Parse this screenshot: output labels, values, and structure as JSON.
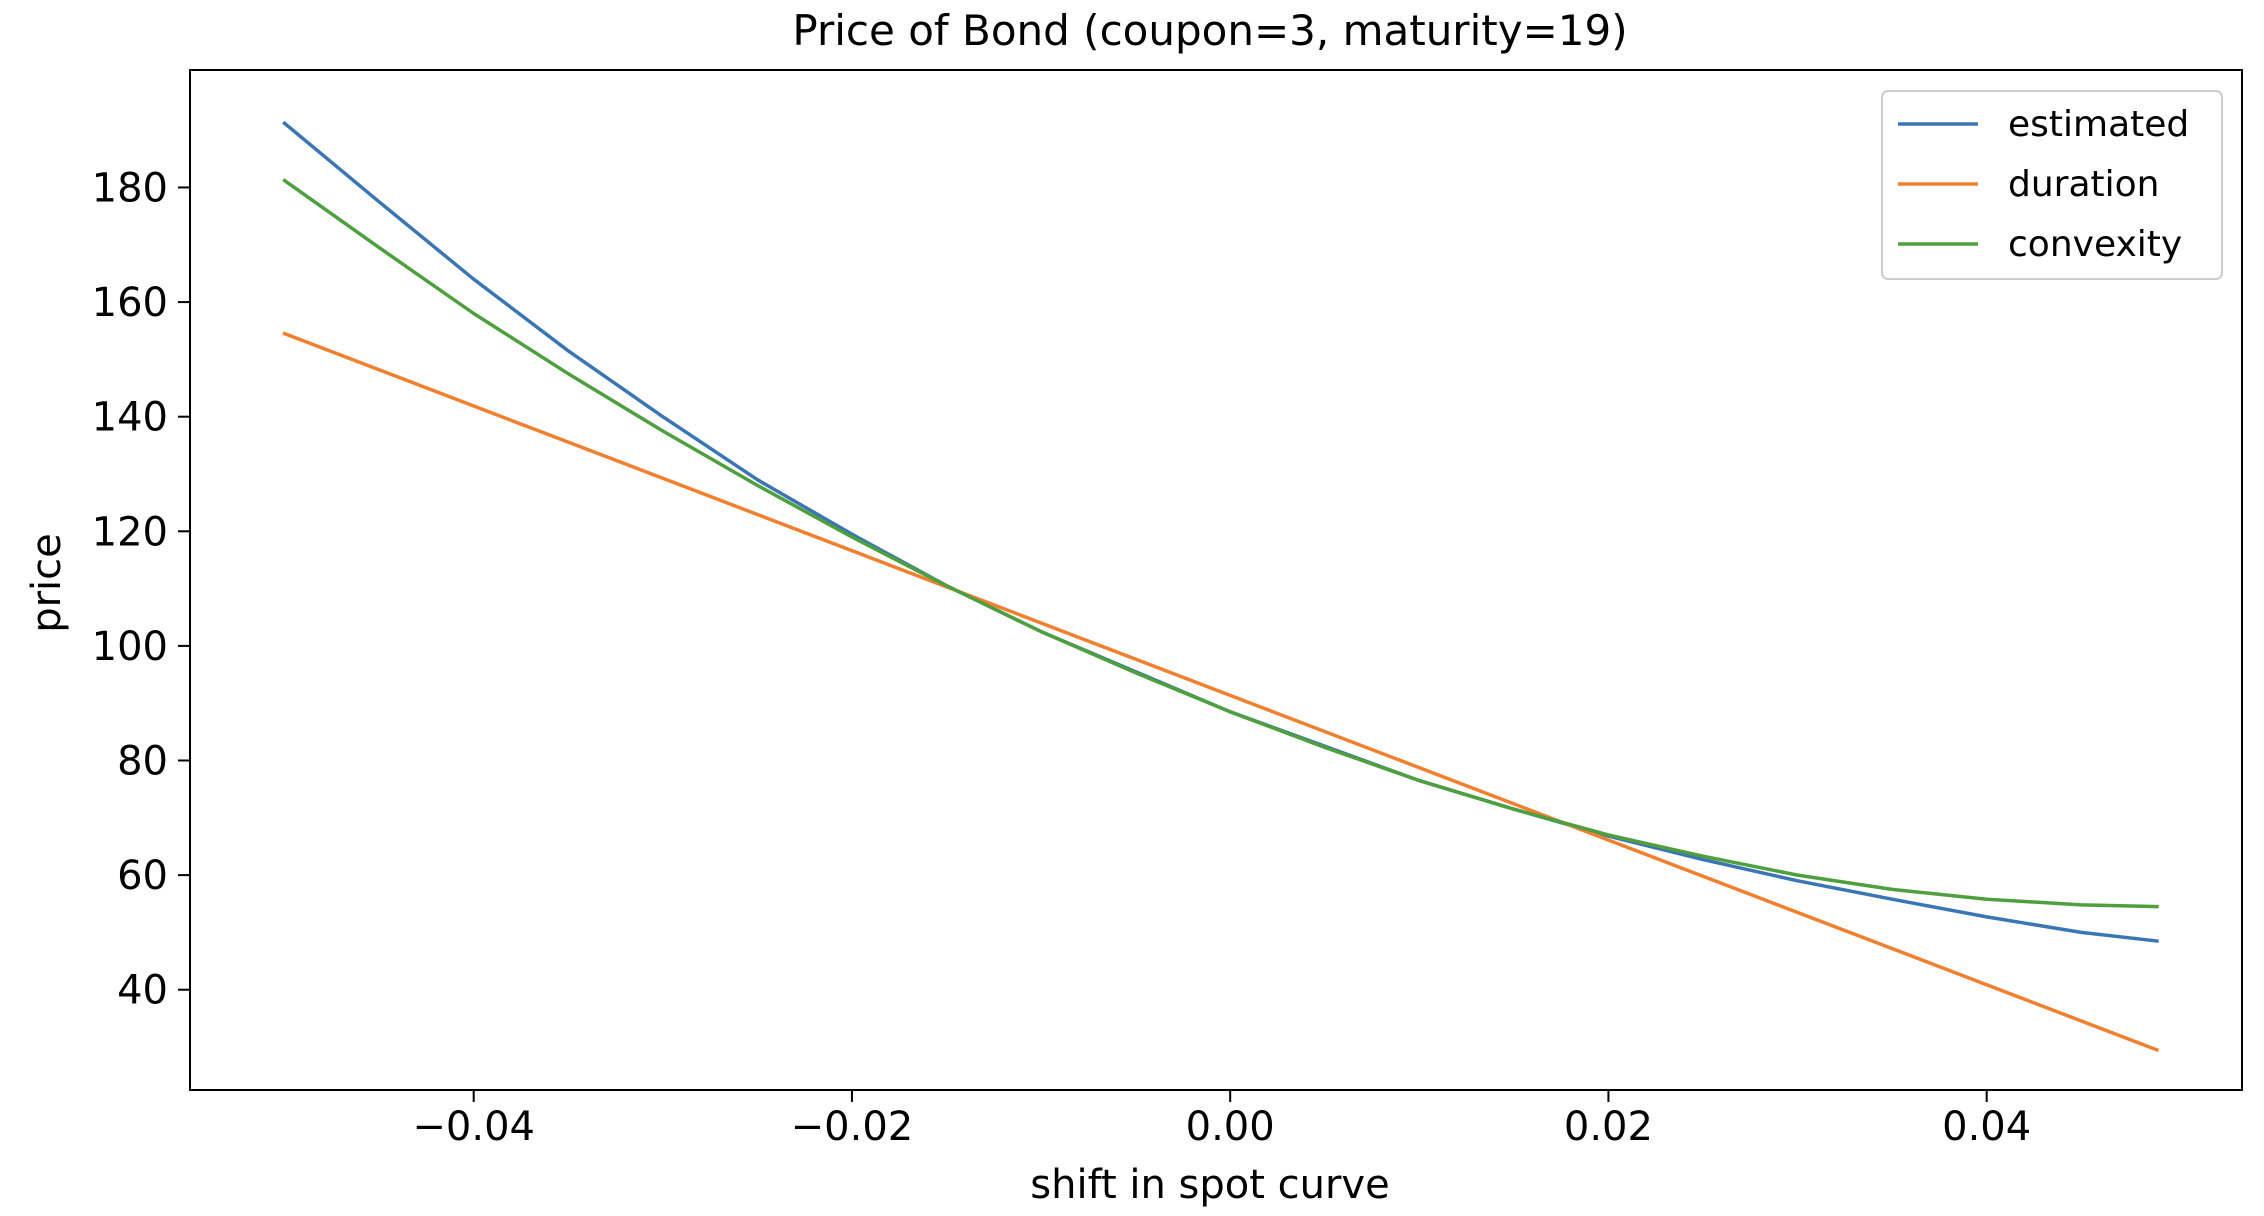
{
  "chart_data": {
    "type": "line",
    "title": "Price of Bond (coupon=3, maturity=19)",
    "xlabel": "shift in spot curve",
    "ylabel": "price",
    "xlim": [
      -0.055,
      0.0535
    ],
    "ylim": [
      22.5,
      200.5
    ],
    "grid": false,
    "legend_position": "top-right",
    "x_ticks": [
      {
        "value": -0.04,
        "label": "−0.04"
      },
      {
        "value": -0.02,
        "label": "−0.02"
      },
      {
        "value": 0.0,
        "label": "0.00"
      },
      {
        "value": 0.02,
        "label": "0.02"
      },
      {
        "value": 0.04,
        "label": "0.04"
      }
    ],
    "y_ticks": [
      {
        "value": 40,
        "label": "40"
      },
      {
        "value": 60,
        "label": "60"
      },
      {
        "value": 80,
        "label": "80"
      },
      {
        "value": 100,
        "label": "100"
      },
      {
        "value": 120,
        "label": "120"
      },
      {
        "value": 140,
        "label": "140"
      },
      {
        "value": 160,
        "label": "160"
      },
      {
        "value": 180,
        "label": "180"
      }
    ],
    "series": [
      {
        "name": "estimated",
        "color": "#3a76b4",
        "x": [
          -0.05,
          -0.045,
          -0.04,
          -0.035,
          -0.03,
          -0.025,
          -0.02,
          -0.015,
          -0.01,
          -0.005,
          0.0,
          0.005,
          0.01,
          0.015,
          0.02,
          0.025,
          0.03,
          0.035,
          0.04,
          0.045,
          0.049
        ],
        "y": [
          191.2,
          177.5,
          164.0,
          151.5,
          140.0,
          129.0,
          119.5,
          110.5,
          102.5,
          95.5,
          88.5,
          82.5,
          76.5,
          71.5,
          66.8,
          62.7,
          59.0,
          55.8,
          52.7,
          50.0,
          48.5
        ]
      },
      {
        "name": "duration",
        "color": "#f08030",
        "x": [
          -0.05,
          0.049
        ],
        "y": [
          154.5,
          29.5
        ]
      },
      {
        "name": "convexity",
        "color": "#4e9f3d",
        "x": [
          -0.05,
          -0.045,
          -0.04,
          -0.035,
          -0.03,
          -0.025,
          -0.02,
          -0.015,
          -0.01,
          -0.005,
          0.0,
          0.005,
          0.01,
          0.015,
          0.02,
          0.025,
          0.03,
          0.035,
          0.04,
          0.045,
          0.049
        ],
        "y": [
          181.2,
          169.5,
          158.0,
          147.5,
          137.5,
          128.0,
          119.0,
          110.5,
          102.5,
          95.3,
          88.5,
          82.3,
          76.5,
          71.5,
          67.0,
          63.3,
          60.0,
          57.5,
          55.8,
          54.8,
          54.5
        ]
      }
    ]
  }
}
